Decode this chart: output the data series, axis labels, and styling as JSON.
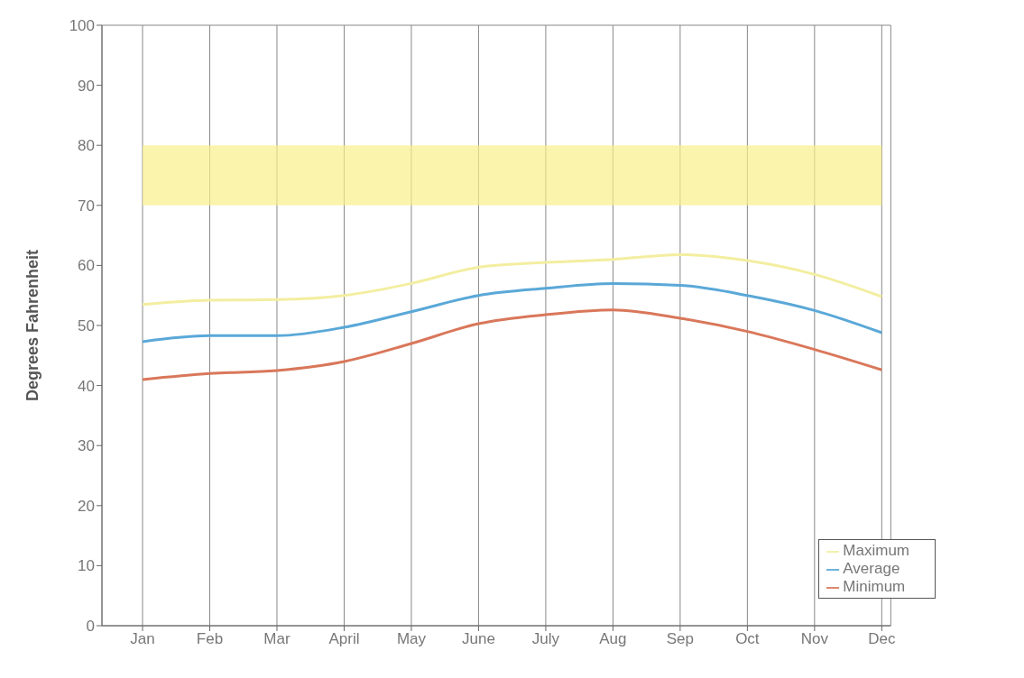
{
  "chart_data": {
    "type": "line",
    "ylabel": "Degrees Fahrenheit",
    "categories": [
      "Jan",
      "Feb",
      "Mar",
      "April",
      "May",
      "June",
      "July",
      "Aug",
      "Sep",
      "Oct",
      "Nov",
      "Dec"
    ],
    "series": [
      {
        "name": "Maximum",
        "color": "#f3eea0",
        "values": [
          53.5,
          54.2,
          54.3,
          55,
          57,
          59.7,
          60.5,
          61,
          61.8,
          60.8,
          58.5,
          54.8
        ]
      },
      {
        "name": "Average",
        "color": "#5aa8d8",
        "values": [
          47.3,
          48.3,
          48.3,
          49.7,
          52.3,
          55,
          56.2,
          57,
          56.7,
          55,
          52.5,
          48.8
        ]
      },
      {
        "name": "Minimum",
        "color": "#d9775a",
        "values": [
          41,
          42,
          42.5,
          44,
          47,
          50.3,
          51.8,
          52.6,
          51.2,
          49,
          46,
          42.6
        ]
      }
    ],
    "ylim": [
      0,
      100
    ],
    "yticks": [
      0,
      10,
      20,
      30,
      40,
      50,
      60,
      70,
      80,
      90,
      100
    ],
    "bands": [
      {
        "axis": "y",
        "from": 70,
        "to": 80,
        "color": "#faf08a"
      }
    ],
    "grid": true,
    "legend": "bottom right",
    "marker": "none",
    "line_style": "solid"
  }
}
